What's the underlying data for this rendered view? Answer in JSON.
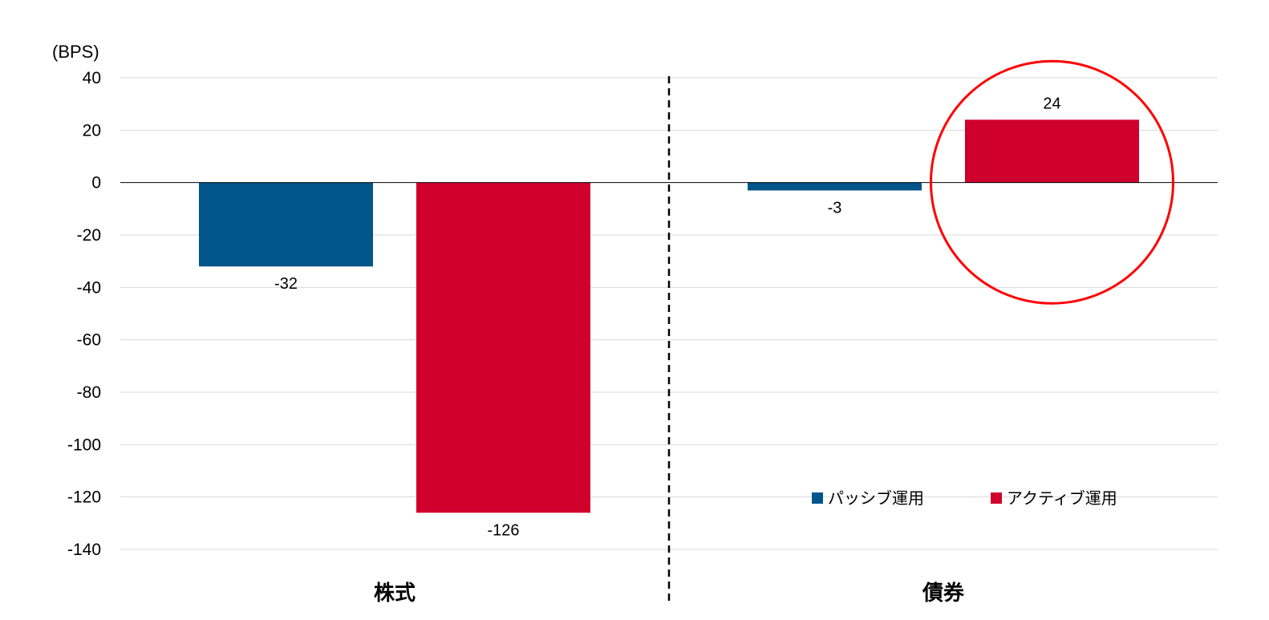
{
  "chart_data": {
    "type": "bar",
    "unit_label": "(BPS)",
    "categories": [
      "株式",
      "債券"
    ],
    "series": [
      {
        "name": "パッシブ運用",
        "color": "#00558a",
        "values": [
          -32,
          -3
        ]
      },
      {
        "name": "アクティブ運用",
        "color": "#d0002c",
        "values": [
          -126,
          24
        ]
      }
    ],
    "ylim": [
      -140,
      40
    ],
    "yticks": [
      "40",
      "20",
      "0",
      "-20",
      "-40",
      "-60",
      "-80",
      "-100",
      "-120",
      "-140"
    ],
    "data_labels": [
      [
        "-32",
        "-3"
      ],
      [
        "-126",
        "24"
      ]
    ],
    "grid": true,
    "legend_position": "bottom-right",
    "group_divider": "dashed",
    "highlight": {
      "series_index": 1,
      "category_index": 1,
      "shape": "circle",
      "color": "#ff0000"
    }
  }
}
